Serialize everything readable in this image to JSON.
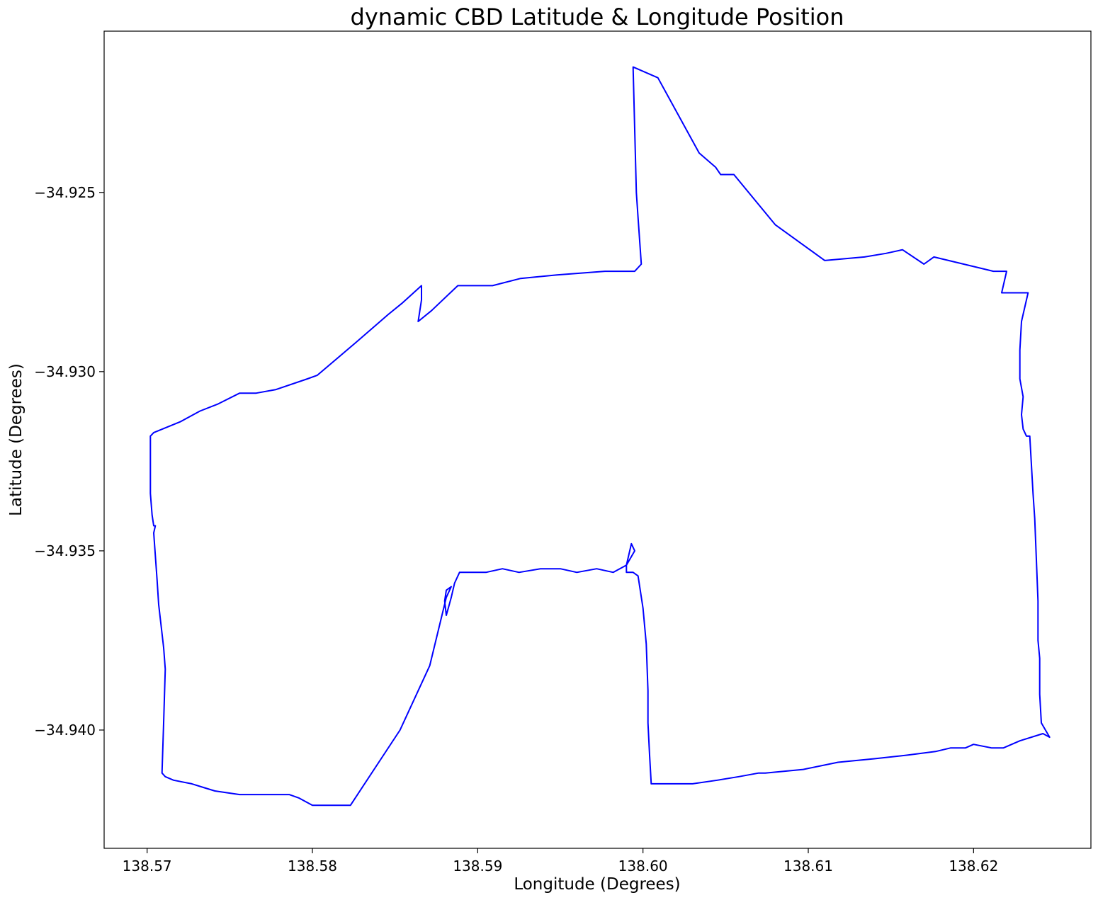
{
  "chart_data": {
    "type": "line",
    "title": "dynamic CBD Latitude & Longitude Position",
    "xlabel": "Longitude (Degrees)",
    "ylabel": "Latitude (Degrees)",
    "xlim": [
      138.5674,
      138.6271
    ],
    "ylim": [
      -34.9433,
      -34.9205
    ],
    "xticks": [
      138.57,
      138.58,
      138.59,
      138.6,
      138.61,
      138.62
    ],
    "xtick_labels": [
      "138.57",
      "138.58",
      "138.59",
      "138.60",
      "138.61",
      "138.62"
    ],
    "yticks": [
      -34.925,
      -34.93,
      -34.935,
      -34.94
    ],
    "ytick_labels": [
      "−34.925",
      "−34.930",
      "−34.935",
      "−34.940"
    ],
    "grid": false,
    "legend": "none",
    "series": [
      {
        "color": "#0000ff",
        "points": [
          [
            138.5702,
            -34.9318
          ],
          [
            138.5704,
            -34.9317
          ],
          [
            138.572,
            -34.9314
          ],
          [
            138.5732,
            -34.9311
          ],
          [
            138.5743,
            -34.9309
          ],
          [
            138.5756,
            -34.9306
          ],
          [
            138.5766,
            -34.9306
          ],
          [
            138.5778,
            -34.9305
          ],
          [
            138.5797,
            -34.9302
          ],
          [
            138.5803,
            -34.9301
          ],
          [
            138.5826,
            -34.9292
          ],
          [
            138.5846,
            -34.9284
          ],
          [
            138.5854,
            -34.9281
          ],
          [
            138.5866,
            -34.9276
          ],
          [
            138.5866,
            -34.928
          ],
          [
            138.5864,
            -34.9286
          ],
          [
            138.5872,
            -34.9283
          ],
          [
            138.5888,
            -34.9276
          ],
          [
            138.5909,
            -34.9276
          ],
          [
            138.5926,
            -34.9274
          ],
          [
            138.5948,
            -34.9273
          ],
          [
            138.5977,
            -34.9272
          ],
          [
            138.5995,
            -34.9272
          ],
          [
            138.5999,
            -34.927
          ],
          [
            138.5997,
            -34.9257
          ],
          [
            138.5996,
            -34.925
          ],
          [
            138.5994,
            -34.9215
          ],
          [
            138.6009,
            -34.9218
          ],
          [
            138.6034,
            -34.9239
          ],
          [
            138.6044,
            -34.9243
          ],
          [
            138.6047,
            -34.9245
          ],
          [
            138.6055,
            -34.9245
          ],
          [
            138.608,
            -34.9259
          ],
          [
            138.611,
            -34.9269
          ],
          [
            138.6134,
            -34.9268
          ],
          [
            138.6147,
            -34.9267
          ],
          [
            138.6157,
            -34.9266
          ],
          [
            138.617,
            -34.927
          ],
          [
            138.6176,
            -34.9268
          ],
          [
            138.6212,
            -34.9272
          ],
          [
            138.622,
            -34.9272
          ],
          [
            138.6217,
            -34.9278
          ],
          [
            138.6226,
            -34.9278
          ],
          [
            138.6233,
            -34.9278
          ],
          [
            138.6229,
            -34.9286
          ],
          [
            138.6228,
            -34.9294
          ],
          [
            138.6228,
            -34.9302
          ],
          [
            138.623,
            -34.9307
          ],
          [
            138.6229,
            -34.9312
          ],
          [
            138.623,
            -34.9316
          ],
          [
            138.6232,
            -34.9318
          ],
          [
            138.6234,
            -34.9318
          ],
          [
            138.6236,
            -34.9334
          ],
          [
            138.6237,
            -34.9341
          ],
          [
            138.6239,
            -34.9364
          ],
          [
            138.6239,
            -34.9375
          ],
          [
            138.624,
            -34.938
          ],
          [
            138.624,
            -34.939
          ],
          [
            138.6241,
            -34.9398
          ],
          [
            138.6246,
            -34.9402
          ],
          [
            138.6242,
            -34.9401
          ],
          [
            138.6228,
            -34.9403
          ],
          [
            138.6218,
            -34.9405
          ],
          [
            138.6211,
            -34.9405
          ],
          [
            138.62,
            -34.9404
          ],
          [
            138.6195,
            -34.9405
          ],
          [
            138.6186,
            -34.9405
          ],
          [
            138.6177,
            -34.9406
          ],
          [
            138.616,
            -34.9407
          ],
          [
            138.614,
            -34.9408
          ],
          [
            138.6118,
            -34.9409
          ],
          [
            138.6097,
            -34.9411
          ],
          [
            138.6074,
            -34.9412
          ],
          [
            138.607,
            -34.9412
          ],
          [
            138.6058,
            -34.9413
          ],
          [
            138.6045,
            -34.9414
          ],
          [
            138.603,
            -34.9415
          ],
          [
            138.6015,
            -34.9415
          ],
          [
            138.6005,
            -34.9415
          ],
          [
            138.6004,
            -34.9407
          ],
          [
            138.6003,
            -34.9398
          ],
          [
            138.6003,
            -34.9389
          ],
          [
            138.6002,
            -34.9376
          ],
          [
            138.6001,
            -34.9371
          ],
          [
            138.6,
            -34.9366
          ],
          [
            138.5997,
            -34.9357
          ],
          [
            138.5994,
            -34.9356
          ],
          [
            138.599,
            -34.9356
          ],
          [
            138.599,
            -34.9354
          ],
          [
            138.5993,
            -34.9348
          ],
          [
            138.5995,
            -34.935
          ],
          [
            138.599,
            -34.9354
          ],
          [
            138.5982,
            -34.9356
          ],
          [
            138.5972,
            -34.9355
          ],
          [
            138.596,
            -34.9356
          ],
          [
            138.595,
            -34.9355
          ],
          [
            138.5938,
            -34.9355
          ],
          [
            138.5925,
            -34.9356
          ],
          [
            138.5915,
            -34.9355
          ],
          [
            138.5905,
            -34.9356
          ],
          [
            138.5895,
            -34.9356
          ],
          [
            138.5889,
            -34.9356
          ],
          [
            138.5886,
            -34.9359
          ],
          [
            138.5884,
            -34.9363
          ],
          [
            138.5881,
            -34.9368
          ],
          [
            138.588,
            -34.9364
          ],
          [
            138.5881,
            -34.9361
          ],
          [
            138.5884,
            -34.936
          ],
          [
            138.5881,
            -34.9363
          ],
          [
            138.5871,
            -34.9382
          ],
          [
            138.5853,
            -34.94
          ],
          [
            138.5823,
            -34.9421
          ],
          [
            138.58,
            -34.9421
          ],
          [
            138.5792,
            -34.9419
          ],
          [
            138.5786,
            -34.9418
          ],
          [
            138.5775,
            -34.9418
          ],
          [
            138.5767,
            -34.9418
          ],
          [
            138.5756,
            -34.9418
          ],
          [
            138.5741,
            -34.9417
          ],
          [
            138.5734,
            -34.9416
          ],
          [
            138.5727,
            -34.9415
          ],
          [
            138.5716,
            -34.9414
          ],
          [
            138.5711,
            -34.9413
          ],
          [
            138.5709,
            -34.9412
          ],
          [
            138.571,
            -34.9398
          ],
          [
            138.5711,
            -34.9383
          ],
          [
            138.571,
            -34.9377
          ],
          [
            138.5707,
            -34.9365
          ],
          [
            138.5706,
            -34.9358
          ],
          [
            138.5704,
            -34.9345
          ],
          [
            138.5705,
            -34.9343
          ],
          [
            138.5704,
            -34.9343
          ],
          [
            138.5703,
            -34.934
          ],
          [
            138.5702,
            -34.9334
          ],
          [
            138.5702,
            -34.9331
          ],
          [
            138.5702,
            -34.9318
          ]
        ]
      }
    ]
  }
}
